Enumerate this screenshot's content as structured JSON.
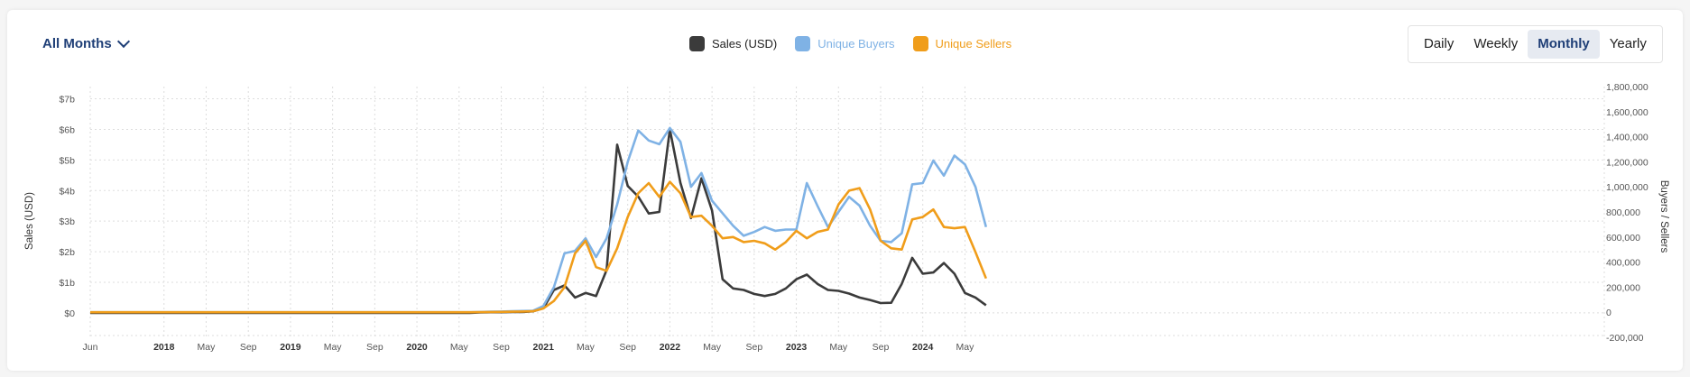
{
  "controls": {
    "range_select": "All Months",
    "period_buttons": [
      "Daily",
      "Weekly",
      "Monthly",
      "Yearly"
    ],
    "active_period": "Monthly"
  },
  "colors": {
    "sales": "#3b3b3b",
    "buyers": "#7fb2e5",
    "sellers": "#f09d1a",
    "grid": "#dddddd"
  },
  "chart_data": {
    "type": "line",
    "legend": [
      {
        "name": "Sales (USD)",
        "color": "#3b3b3b"
      },
      {
        "name": "Unique Buyers",
        "color": "#7fb2e5"
      },
      {
        "name": "Unique Sellers",
        "color": "#f09d1a"
      }
    ],
    "legend_placement": "top-center",
    "ylabel_left": "Sales (USD)",
    "ylabel_right": "Buyers / Sellers",
    "ylim_left": [
      -0.8,
      7.4
    ],
    "ylim_right": [
      -200000,
      1800000
    ],
    "left_ticks": [
      {
        "v": 0,
        "label": "$0"
      },
      {
        "v": 1,
        "label": "$1b"
      },
      {
        "v": 2,
        "label": "$2b"
      },
      {
        "v": 3,
        "label": "$3b"
      },
      {
        "v": 4,
        "label": "$4b"
      },
      {
        "v": 5,
        "label": "$5b"
      },
      {
        "v": 6,
        "label": "$6b"
      },
      {
        "v": 7,
        "label": "$7b"
      }
    ],
    "right_ticks": [
      {
        "v": -200000,
        "label": "-200,000"
      },
      {
        "v": 0,
        "label": "0"
      },
      {
        "v": 200000,
        "label": "200,000"
      },
      {
        "v": 400000,
        "label": "400,000"
      },
      {
        "v": 600000,
        "label": "600,000"
      },
      {
        "v": 800000,
        "label": "800,000"
      },
      {
        "v": 1000000,
        "label": "1,000,000"
      },
      {
        "v": 1200000,
        "label": "1,200,000"
      },
      {
        "v": 1400000,
        "label": "1,400,000"
      },
      {
        "v": 1600000,
        "label": "1,600,000"
      },
      {
        "v": 1800000,
        "label": "1,800,000"
      }
    ],
    "x_ticks": [
      {
        "label": "Jun",
        "month": 0,
        "bold": false
      },
      {
        "label": "2018",
        "month": 7,
        "bold": true
      },
      {
        "label": "May",
        "month": 11,
        "bold": false
      },
      {
        "label": "Sep",
        "month": 15,
        "bold": false
      },
      {
        "label": "2019",
        "month": 19,
        "bold": true
      },
      {
        "label": "May",
        "month": 23,
        "bold": false
      },
      {
        "label": "Sep",
        "month": 27,
        "bold": false
      },
      {
        "label": "2020",
        "month": 31,
        "bold": true
      },
      {
        "label": "May",
        "month": 35,
        "bold": false
      },
      {
        "label": "Sep",
        "month": 39,
        "bold": false
      },
      {
        "label": "2021",
        "month": 43,
        "bold": true
      },
      {
        "label": "May",
        "month": 47,
        "bold": false
      },
      {
        "label": "Sep",
        "month": 51,
        "bold": false
      },
      {
        "label": "2022",
        "month": 55,
        "bold": true
      },
      {
        "label": "May",
        "month": 59,
        "bold": false
      },
      {
        "label": "Sep",
        "month": 63,
        "bold": false
      },
      {
        "label": "2023",
        "month": 67,
        "bold": true
      },
      {
        "label": "May",
        "month": 71,
        "bold": false
      },
      {
        "label": "Sep",
        "month": 75,
        "bold": false
      },
      {
        "label": "2024",
        "month": 79,
        "bold": true
      },
      {
        "label": "May",
        "month": 83,
        "bold": false
      }
    ],
    "series": [
      {
        "name": "Sales (USD)",
        "axis": "left",
        "values": [
          0,
          0,
          0,
          0,
          0,
          0,
          0,
          0,
          0,
          0,
          0,
          0,
          0,
          0,
          0,
          0,
          0,
          0,
          0,
          0,
          0,
          0,
          0,
          0,
          0,
          0,
          0,
          0,
          0,
          0,
          0,
          0,
          0,
          0,
          0,
          0,
          0,
          0.01,
          0.02,
          0.02,
          0.03,
          0.03,
          0.05,
          0.15,
          0.75,
          0.9,
          0.5,
          0.65,
          0.55,
          1.4,
          5.5,
          4.15,
          3.8,
          3.25,
          3.3,
          6.0,
          4.25,
          3.1,
          4.4,
          3.35,
          1.1,
          0.8,
          0.75,
          0.62,
          0.55,
          0.62,
          0.8,
          1.1,
          1.25,
          0.95,
          0.75,
          0.72,
          0.63,
          0.5,
          0.42,
          0.32,
          0.33,
          0.95,
          1.8,
          1.28,
          1.32,
          1.63,
          1.28,
          0.65,
          0.5,
          0.25
        ]
      },
      {
        "name": "Unique Buyers",
        "axis": "right",
        "values": [
          0,
          0,
          0,
          0,
          0,
          0,
          0,
          0,
          0,
          0,
          0,
          0,
          0,
          0,
          0,
          0,
          0,
          0,
          0,
          0,
          0,
          0,
          0,
          0,
          0,
          0,
          0,
          0,
          0,
          0,
          0,
          0,
          0,
          0,
          0,
          0,
          0,
          2000,
          4000,
          6000,
          8000,
          10000,
          12000,
          50000,
          200000,
          470000,
          490000,
          590000,
          440000,
          590000,
          860000,
          1200000,
          1450000,
          1370000,
          1340000,
          1470000,
          1360000,
          1000000,
          1110000,
          890000,
          790000,
          690000,
          610000,
          640000,
          680000,
          650000,
          660000,
          660000,
          1030000,
          850000,
          680000,
          800000,
          920000,
          850000,
          690000,
          570000,
          560000,
          630000,
          1020000,
          1030000,
          1210000,
          1090000,
          1250000,
          1180000,
          1000000,
          680000
        ]
      },
      {
        "name": "Unique Sellers",
        "axis": "right",
        "values": [
          0,
          0,
          0,
          0,
          0,
          0,
          0,
          0,
          0,
          0,
          0,
          0,
          0,
          0,
          0,
          0,
          0,
          0,
          0,
          0,
          0,
          0,
          0,
          0,
          0,
          0,
          0,
          0,
          0,
          0,
          0,
          0,
          0,
          0,
          0,
          0,
          0,
          1000,
          2000,
          3000,
          4000,
          6000,
          8000,
          30000,
          90000,
          200000,
          470000,
          570000,
          360000,
          330000,
          510000,
          760000,
          950000,
          1030000,
          920000,
          1040000,
          950000,
          760000,
          770000,
          690000,
          590000,
          600000,
          560000,
          570000,
          550000,
          500000,
          560000,
          650000,
          590000,
          640000,
          660000,
          860000,
          970000,
          990000,
          820000,
          570000,
          510000,
          500000,
          740000,
          760000,
          820000,
          680000,
          670000,
          680000,
          480000,
          270000
        ]
      }
    ]
  }
}
